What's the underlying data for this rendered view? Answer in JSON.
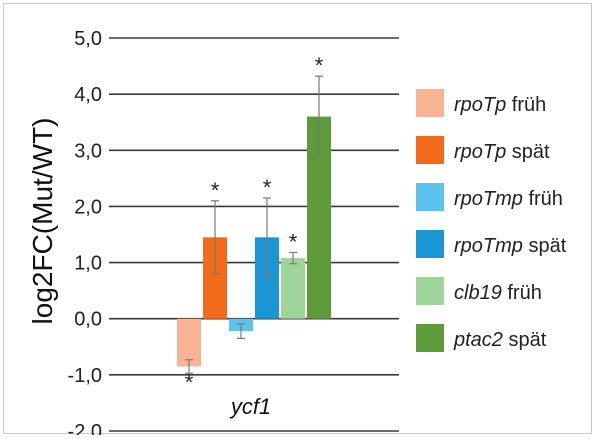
{
  "chart_data": {
    "type": "bar",
    "categories": [
      "ycf1"
    ],
    "xlabel": "ycf1",
    "ylabel": "log2FC(Mut/WT)",
    "ylim": [
      -2.0,
      5.0
    ],
    "yticks": [
      "5,0",
      "4,0",
      "3,0",
      "2,0",
      "1,0",
      "0,0",
      "-1,0",
      "-2,0"
    ],
    "grid": "horizontal",
    "legend_position": "right",
    "series": [
      {
        "name_italic": "rpoTp",
        "name_suffix": " früh",
        "color": "#f6b494",
        "value": -0.85,
        "error": 0.12,
        "significant": true
      },
      {
        "name_italic": "rpoTp",
        "name_suffix": " spät",
        "color": "#f26a1c",
        "value": 1.45,
        "error": 0.65,
        "significant": true
      },
      {
        "name_italic": "rpoTmp",
        "name_suffix": " früh",
        "color": "#5bc3ee",
        "value": -0.22,
        "error": 0.13,
        "significant": false
      },
      {
        "name_italic": "rpoTmp",
        "name_suffix": " spät",
        "color": "#1a96d4",
        "value": 1.45,
        "error": 0.7,
        "significant": true
      },
      {
        "name_italic": "clb19",
        "name_suffix": " früh",
        "color": "#9fd49a",
        "value": 1.08,
        "error": 0.1,
        "significant": true
      },
      {
        "name_italic": "ptac2",
        "name_suffix": " spät",
        "color": "#5d9a3a",
        "value": 3.6,
        "error": 0.72,
        "significant": true
      }
    ],
    "significance_marker": "*"
  }
}
